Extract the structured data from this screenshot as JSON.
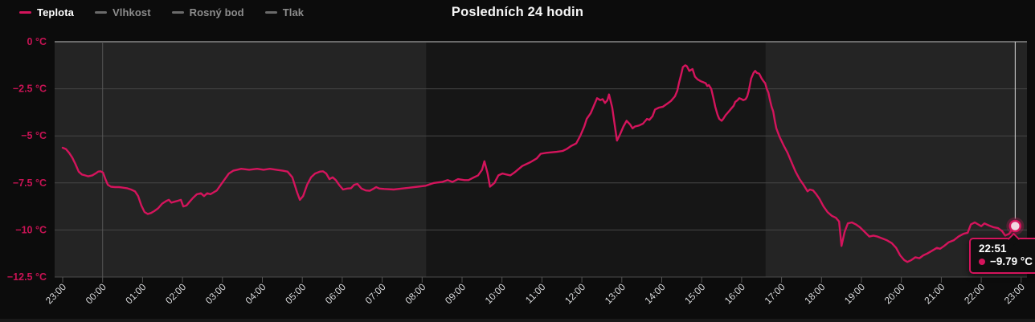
{
  "title": "Posledních 24 hodin",
  "legend": {
    "position": "top-left",
    "items": [
      {
        "label": "Teplota",
        "color": "#d4145c",
        "text_color": "#ffffff",
        "active": true
      },
      {
        "label": "Vlhkost",
        "color": "#6b6b6b",
        "text_color": "#8d8d8d",
        "active": false
      },
      {
        "label": "Rosný bod",
        "color": "#6b6b6b",
        "text_color": "#8d8d8d",
        "active": false
      },
      {
        "label": "Tlak",
        "color": "#6b6b6b",
        "text_color": "#8d8d8d",
        "active": false
      }
    ]
  },
  "tooltip": {
    "time": "22:51",
    "value": "−9.79 °C"
  },
  "colors": {
    "accent": "#d4145c",
    "y_label": "#c81354",
    "x_label": "#d9dadc",
    "plot_bg": "#242424",
    "day_band": "#161616",
    "grid": "#464646",
    "zero_line": "#6a6a6a",
    "axis": "#4d4d4d",
    "crosshair": "#dcdcdc",
    "marker_fill": "#f0d6e0"
  },
  "chart_data": {
    "type": "line",
    "title": "Posledních 24 hodin",
    "grid": true,
    "legend_position": "top-left",
    "ylabel": "",
    "xlabel": "",
    "ylim": [
      -12.5,
      0
    ],
    "xlim_hours": [
      0,
      24.15
    ],
    "y_ticks": [
      {
        "label": "0 °C",
        "value": 0
      },
      {
        "label": "−2.5 °C",
        "value": -2.5
      },
      {
        "label": "−5 °C",
        "value": -5
      },
      {
        "label": "−7.5 °C",
        "value": -7.5
      },
      {
        "label": "−10 °C",
        "value": -10
      },
      {
        "label": "−12.5 °C",
        "value": -12.5
      }
    ],
    "x_ticks": [
      "23:00",
      "00:00",
      "01:00",
      "02:00",
      "03:00",
      "04:00",
      "05:00",
      "06:00",
      "07:00",
      "08:00",
      "09:00",
      "10:00",
      "11:00",
      "12:00",
      "13:00",
      "14:00",
      "15:00",
      "16:00",
      "17:00",
      "18:00",
      "19:00",
      "20:00",
      "21:00",
      "22:00",
      "23:00"
    ],
    "vertical_gridline_hours": [
      1.0
    ],
    "dark_band": {
      "from_hour": 9.1,
      "to_hour": 17.6
    },
    "marker": {
      "hour": 23.85,
      "value": -9.79,
      "time_label": "22:51",
      "value_label": "−9.79 °C"
    },
    "series": [
      {
        "name": "Teplota",
        "unit": "°C",
        "color": "#d4145c",
        "points": [
          [
            0,
            -5.63
          ],
          [
            0.08,
            -5.7
          ],
          [
            0.16,
            -5.9
          ],
          [
            0.24,
            -6.15
          ],
          [
            0.32,
            -6.5
          ],
          [
            0.4,
            -6.9
          ],
          [
            0.48,
            -7.05
          ],
          [
            0.56,
            -7.1
          ],
          [
            0.64,
            -7.15
          ],
          [
            0.74,
            -7.1
          ],
          [
            0.82,
            -7.0
          ],
          [
            0.89,
            -6.9
          ],
          [
            0.95,
            -6.88
          ],
          [
            1.01,
            -6.95
          ],
          [
            1.07,
            -7.3
          ],
          [
            1.13,
            -7.6
          ],
          [
            1.21,
            -7.7
          ],
          [
            1.31,
            -7.72
          ],
          [
            1.41,
            -7.72
          ],
          [
            1.51,
            -7.75
          ],
          [
            1.61,
            -7.78
          ],
          [
            1.71,
            -7.85
          ],
          [
            1.81,
            -7.95
          ],
          [
            1.89,
            -8.2
          ],
          [
            1.97,
            -8.7
          ],
          [
            2.05,
            -9.05
          ],
          [
            2.13,
            -9.15
          ],
          [
            2.21,
            -9.1
          ],
          [
            2.29,
            -9.0
          ],
          [
            2.39,
            -8.85
          ],
          [
            2.49,
            -8.6
          ],
          [
            2.6,
            -8.45
          ],
          [
            2.66,
            -8.4
          ],
          [
            2.72,
            -8.55
          ],
          [
            2.8,
            -8.5
          ],
          [
            2.88,
            -8.45
          ],
          [
            2.96,
            -8.4
          ],
          [
            3.02,
            -8.75
          ],
          [
            3.1,
            -8.7
          ],
          [
            3.18,
            -8.5
          ],
          [
            3.26,
            -8.3
          ],
          [
            3.36,
            -8.1
          ],
          [
            3.46,
            -8.05
          ],
          [
            3.54,
            -8.2
          ],
          [
            3.62,
            -8.05
          ],
          [
            3.7,
            -8.1
          ],
          [
            3.78,
            -8.0
          ],
          [
            3.86,
            -7.9
          ],
          [
            3.96,
            -7.6
          ],
          [
            4.06,
            -7.3
          ],
          [
            4.16,
            -7.0
          ],
          [
            4.27,
            -6.85
          ],
          [
            4.37,
            -6.8
          ],
          [
            4.47,
            -6.75
          ],
          [
            4.67,
            -6.8
          ],
          [
            4.87,
            -6.75
          ],
          [
            5.03,
            -6.8
          ],
          [
            5.19,
            -6.75
          ],
          [
            5.35,
            -6.8
          ],
          [
            5.51,
            -6.85
          ],
          [
            5.63,
            -6.9
          ],
          [
            5.75,
            -7.2
          ],
          [
            5.87,
            -8.0
          ],
          [
            5.94,
            -8.4
          ],
          [
            6.02,
            -8.2
          ],
          [
            6.12,
            -7.6
          ],
          [
            6.22,
            -7.2
          ],
          [
            6.32,
            -7.0
          ],
          [
            6.44,
            -6.9
          ],
          [
            6.52,
            -6.88
          ],
          [
            6.6,
            -7.0
          ],
          [
            6.68,
            -7.3
          ],
          [
            6.76,
            -7.2
          ],
          [
            6.84,
            -7.35
          ],
          [
            6.92,
            -7.6
          ],
          [
            7.02,
            -7.85
          ],
          [
            7.12,
            -7.8
          ],
          [
            7.22,
            -7.78
          ],
          [
            7.3,
            -7.6
          ],
          [
            7.38,
            -7.55
          ],
          [
            7.48,
            -7.8
          ],
          [
            7.59,
            -7.9
          ],
          [
            7.69,
            -7.92
          ],
          [
            7.79,
            -7.8
          ],
          [
            7.85,
            -7.72
          ],
          [
            7.93,
            -7.8
          ],
          [
            8.05,
            -7.82
          ],
          [
            8.29,
            -7.85
          ],
          [
            8.49,
            -7.8
          ],
          [
            8.69,
            -7.75
          ],
          [
            8.89,
            -7.7
          ],
          [
            9.09,
            -7.65
          ],
          [
            9.3,
            -7.5
          ],
          [
            9.5,
            -7.45
          ],
          [
            9.64,
            -7.35
          ],
          [
            9.76,
            -7.45
          ],
          [
            9.9,
            -7.3
          ],
          [
            10.06,
            -7.35
          ],
          [
            10.16,
            -7.35
          ],
          [
            10.3,
            -7.2
          ],
          [
            10.4,
            -7.1
          ],
          [
            10.5,
            -6.8
          ],
          [
            10.56,
            -6.35
          ],
          [
            10.64,
            -7.0
          ],
          [
            10.7,
            -7.7
          ],
          [
            10.81,
            -7.5
          ],
          [
            10.91,
            -7.1
          ],
          [
            11.01,
            -7.0
          ],
          [
            11.11,
            -7.05
          ],
          [
            11.21,
            -7.1
          ],
          [
            11.31,
            -6.95
          ],
          [
            11.51,
            -6.6
          ],
          [
            11.71,
            -6.4
          ],
          [
            11.87,
            -6.2
          ],
          [
            11.97,
            -5.95
          ],
          [
            12.11,
            -5.9
          ],
          [
            12.37,
            -5.85
          ],
          [
            12.52,
            -5.8
          ],
          [
            12.62,
            -5.7
          ],
          [
            12.72,
            -5.55
          ],
          [
            12.86,
            -5.4
          ],
          [
            12.96,
            -5.0
          ],
          [
            13.06,
            -4.5
          ],
          [
            13.12,
            -4.1
          ],
          [
            13.22,
            -3.8
          ],
          [
            13.32,
            -3.3
          ],
          [
            13.38,
            -3.0
          ],
          [
            13.46,
            -3.1
          ],
          [
            13.52,
            -3.05
          ],
          [
            13.58,
            -3.25
          ],
          [
            13.64,
            -3.1
          ],
          [
            13.68,
            -2.8
          ],
          [
            13.76,
            -3.5
          ],
          [
            13.82,
            -4.4
          ],
          [
            13.88,
            -5.25
          ],
          [
            13.96,
            -4.9
          ],
          [
            14.04,
            -4.5
          ],
          [
            14.12,
            -4.2
          ],
          [
            14.21,
            -4.4
          ],
          [
            14.27,
            -4.6
          ],
          [
            14.33,
            -4.5
          ],
          [
            14.43,
            -4.45
          ],
          [
            14.53,
            -4.35
          ],
          [
            14.63,
            -4.1
          ],
          [
            14.69,
            -4.15
          ],
          [
            14.77,
            -3.95
          ],
          [
            14.83,
            -3.6
          ],
          [
            14.93,
            -3.5
          ],
          [
            15.03,
            -3.45
          ],
          [
            15.13,
            -3.3
          ],
          [
            15.23,
            -3.15
          ],
          [
            15.33,
            -2.9
          ],
          [
            15.39,
            -2.6
          ],
          [
            15.43,
            -2.2
          ],
          [
            15.49,
            -1.7
          ],
          [
            15.53,
            -1.35
          ],
          [
            15.59,
            -1.25
          ],
          [
            15.63,
            -1.3
          ],
          [
            15.69,
            -1.55
          ],
          [
            15.73,
            -1.5
          ],
          [
            15.77,
            -1.45
          ],
          [
            15.83,
            -1.85
          ],
          [
            15.9,
            -2.0
          ],
          [
            15.98,
            -2.1
          ],
          [
            16.04,
            -2.15
          ],
          [
            16.1,
            -2.2
          ],
          [
            16.14,
            -2.35
          ],
          [
            16.18,
            -2.3
          ],
          [
            16.24,
            -2.5
          ],
          [
            16.3,
            -3.05
          ],
          [
            16.34,
            -3.45
          ],
          [
            16.4,
            -3.9
          ],
          [
            16.44,
            -4.1
          ],
          [
            16.5,
            -4.2
          ],
          [
            16.54,
            -4.1
          ],
          [
            16.6,
            -3.9
          ],
          [
            16.64,
            -3.8
          ],
          [
            16.7,
            -3.65
          ],
          [
            16.74,
            -3.55
          ],
          [
            16.8,
            -3.4
          ],
          [
            16.84,
            -3.2
          ],
          [
            16.9,
            -3.1
          ],
          [
            16.94,
            -3.0
          ],
          [
            17.0,
            -3.05
          ],
          [
            17.04,
            -3.1
          ],
          [
            17.1,
            -3.05
          ],
          [
            17.14,
            -2.9
          ],
          [
            17.18,
            -2.6
          ],
          [
            17.24,
            -1.95
          ],
          [
            17.3,
            -1.65
          ],
          [
            17.34,
            -1.55
          ],
          [
            17.38,
            -1.65
          ],
          [
            17.44,
            -1.7
          ],
          [
            17.5,
            -1.95
          ],
          [
            17.55,
            -2.1
          ],
          [
            17.59,
            -2.2
          ],
          [
            17.63,
            -2.5
          ],
          [
            17.67,
            -2.7
          ],
          [
            17.71,
            -3.1
          ],
          [
            17.75,
            -3.45
          ],
          [
            17.79,
            -3.7
          ],
          [
            17.83,
            -4.2
          ],
          [
            17.87,
            -4.6
          ],
          [
            17.95,
            -5.05
          ],
          [
            18.05,
            -5.5
          ],
          [
            18.15,
            -5.9
          ],
          [
            18.25,
            -6.4
          ],
          [
            18.35,
            -6.9
          ],
          [
            18.45,
            -7.3
          ],
          [
            18.55,
            -7.6
          ],
          [
            18.65,
            -7.95
          ],
          [
            18.71,
            -7.85
          ],
          [
            18.79,
            -7.9
          ],
          [
            18.87,
            -8.1
          ],
          [
            18.95,
            -8.35
          ],
          [
            19.05,
            -8.75
          ],
          [
            19.15,
            -9.05
          ],
          [
            19.26,
            -9.25
          ],
          [
            19.36,
            -9.35
          ],
          [
            19.44,
            -9.55
          ],
          [
            19.5,
            -10.85
          ],
          [
            19.58,
            -10.1
          ],
          [
            19.66,
            -9.65
          ],
          [
            19.76,
            -9.6
          ],
          [
            19.86,
            -9.7
          ],
          [
            19.96,
            -9.85
          ],
          [
            20.08,
            -10.1
          ],
          [
            20.2,
            -10.35
          ],
          [
            20.3,
            -10.3
          ],
          [
            20.4,
            -10.35
          ],
          [
            20.52,
            -10.45
          ],
          [
            20.64,
            -10.55
          ],
          [
            20.76,
            -10.7
          ],
          [
            20.87,
            -10.95
          ],
          [
            20.97,
            -11.35
          ],
          [
            21.07,
            -11.6
          ],
          [
            21.15,
            -11.7
          ],
          [
            21.25,
            -11.6
          ],
          [
            21.35,
            -11.45
          ],
          [
            21.45,
            -11.5
          ],
          [
            21.55,
            -11.35
          ],
          [
            21.65,
            -11.25
          ],
          [
            21.77,
            -11.1
          ],
          [
            21.89,
            -10.95
          ],
          [
            21.97,
            -11.0
          ],
          [
            22.07,
            -10.85
          ],
          [
            22.19,
            -10.65
          ],
          [
            22.31,
            -10.55
          ],
          [
            22.43,
            -10.35
          ],
          [
            22.56,
            -10.2
          ],
          [
            22.66,
            -10.15
          ],
          [
            22.74,
            -9.7
          ],
          [
            22.84,
            -9.6
          ],
          [
            22.92,
            -9.7
          ],
          [
            23.0,
            -9.8
          ],
          [
            23.08,
            -9.65
          ],
          [
            23.18,
            -9.75
          ],
          [
            23.3,
            -9.85
          ],
          [
            23.42,
            -9.9
          ],
          [
            23.52,
            -10.05
          ],
          [
            23.6,
            -10.3
          ],
          [
            23.7,
            -10.2
          ],
          [
            23.78,
            -9.95
          ],
          [
            23.85,
            -9.79
          ]
        ]
      },
      {
        "name": "Vlhkost",
        "color": "#6b6b6b",
        "hidden": true,
        "points": []
      },
      {
        "name": "Rosný bod",
        "color": "#6b6b6b",
        "hidden": true,
        "points": []
      },
      {
        "name": "Tlak",
        "color": "#6b6b6b",
        "hidden": true,
        "points": []
      }
    ]
  }
}
